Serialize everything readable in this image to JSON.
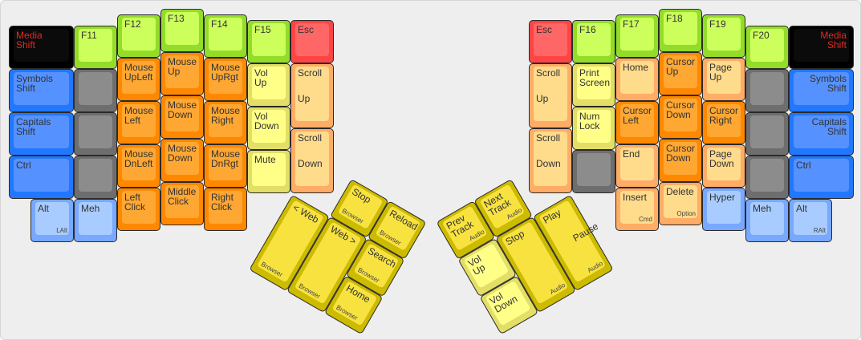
{
  "colors": {
    "black": {
      "outer": "#000000",
      "inner": "#0b0b0b",
      "text": "#e8281e"
    },
    "green": {
      "outer": "#93dc2a",
      "inner": "#ccff5c"
    },
    "blue": {
      "outer": "#2277ff",
      "inner": "#5592ff"
    },
    "gray": {
      "outer": "#6e6e6e",
      "inner": "#8c8c8c"
    },
    "orange": {
      "outer": "#ff8800",
      "inner": "#ffa733"
    },
    "lightorange": {
      "outer": "#ffac66",
      "inner": "#ffdb8c"
    },
    "paleyellow": {
      "outer": "#e3de66",
      "inner": "#ffff88"
    },
    "red": {
      "outer": "#ff4444",
      "inner": "#ff6666"
    },
    "lightblue": {
      "outer": "#78a8ff",
      "inner": "#a8ccff"
    },
    "thumb": {
      "outer": "#ccbb00",
      "inner": "#f7e240"
    }
  },
  "keys": [
    {
      "label": "Media\nShift",
      "color": "black"
    },
    {
      "label": "Symbols\nShift",
      "color": "blue"
    },
    {
      "label": "Capitals\nShift",
      "color": "blue"
    },
    {
      "label": "Ctrl",
      "color": "blue"
    },
    {
      "label": "Alt",
      "sub": "LAlt",
      "color": "lightblue"
    },
    {
      "label": "F11",
      "color": "green"
    },
    {
      "label": "",
      "color": "gray"
    },
    {
      "label": "",
      "color": "gray"
    },
    {
      "label": "",
      "color": "gray"
    },
    {
      "label": "Meh",
      "color": "lightblue"
    },
    {
      "label": "F12",
      "color": "green"
    },
    {
      "label": "Mouse\nUpLeft",
      "color": "orange"
    },
    {
      "label": "Mouse\nLeft",
      "color": "orange"
    },
    {
      "label": "Mouse\nDnLeft",
      "color": "orange"
    },
    {
      "label": "Left\nClick",
      "color": "orange"
    },
    {
      "label": "F13",
      "color": "green"
    },
    {
      "label": "Mouse\nUp",
      "color": "orange"
    },
    {
      "label": "Mouse\nDown",
      "color": "orange"
    },
    {
      "label": "Mouse\nDown",
      "color": "orange"
    },
    {
      "label": "Middle\nClick",
      "color": "orange"
    },
    {
      "label": "F14",
      "color": "green"
    },
    {
      "label": "Mouse\nUpRgt",
      "color": "orange"
    },
    {
      "label": "Mouse\nRight",
      "color": "orange"
    },
    {
      "label": "Mouse\nDnRgt",
      "color": "orange"
    },
    {
      "label": "Right\nClick",
      "color": "orange"
    },
    {
      "label": "F15",
      "color": "green"
    },
    {
      "label": "Vol\nUp",
      "color": "paleyellow"
    },
    {
      "label": "Vol\nDown",
      "color": "paleyellow"
    },
    {
      "label": "Mute",
      "color": "paleyellow"
    },
    {
      "label": "Esc",
      "color": "red"
    },
    {
      "label": "Scroll",
      "mid": "Up",
      "color": "lightorange"
    },
    {
      "label": "Scroll",
      "mid": "Down",
      "color": "lightorange"
    },
    {
      "label": "Esc",
      "color": "red"
    },
    {
      "label": "Scroll",
      "mid": "Up",
      "color": "lightorange"
    },
    {
      "label": "Scroll",
      "mid": "Down",
      "color": "lightorange"
    },
    {
      "label": "F16",
      "color": "green"
    },
    {
      "label": "Print\nScreen",
      "color": "paleyellow"
    },
    {
      "label": "Num\nLock",
      "color": "paleyellow"
    },
    {
      "label": "",
      "color": "gray"
    },
    {
      "label": "F17",
      "color": "green"
    },
    {
      "label": "Home",
      "color": "lightorange"
    },
    {
      "label": "Cursor\nLeft",
      "color": "orange"
    },
    {
      "label": "End",
      "color": "lightorange"
    },
    {
      "label": "Insert",
      "sub": "Cmd",
      "color": "lightorange"
    },
    {
      "label": "F18",
      "color": "green"
    },
    {
      "label": "Cursor\nUp",
      "color": "orange"
    },
    {
      "label": "Cursor\nDown",
      "color": "orange"
    },
    {
      "label": "Cursor\nDown",
      "color": "orange"
    },
    {
      "label": "Delete",
      "sub": "Option",
      "color": "lightorange"
    },
    {
      "label": "F19",
      "color": "green"
    },
    {
      "label": "Page\nUp",
      "color": "lightorange"
    },
    {
      "label": "Cursor\nRight",
      "color": "orange"
    },
    {
      "label": "Page\nDown",
      "color": "lightorange"
    },
    {
      "label": "Hyper",
      "color": "lightblue"
    },
    {
      "label": "F20",
      "color": "green"
    },
    {
      "label": "",
      "color": "gray"
    },
    {
      "label": "",
      "color": "gray"
    },
    {
      "label": "",
      "color": "gray"
    },
    {
      "label": "Meh",
      "color": "lightblue"
    },
    {
      "label": "Media\nShift",
      "color": "black",
      "align": "right"
    },
    {
      "label": "Symbols\nShift",
      "color": "blue",
      "align": "right"
    },
    {
      "label": "Capitals\nShift",
      "color": "blue",
      "align": "right"
    },
    {
      "label": "Ctrl",
      "color": "blue"
    },
    {
      "label": "Alt",
      "sub": "RAlt",
      "color": "lightblue"
    }
  ],
  "thumbs_left": [
    {
      "label": "Stop",
      "sub": "Browser",
      "color": "thumb"
    },
    {
      "label": "Reload",
      "sub": "Browser",
      "color": "thumb"
    },
    {
      "label": "< Web",
      "sub": "Browser",
      "color": "thumb"
    },
    {
      "label": "Web >",
      "sub": "Browser",
      "color": "thumb"
    },
    {
      "label": "Search",
      "sub": "Browser",
      "color": "thumb"
    },
    {
      "label": "Home",
      "sub": "Browser",
      "color": "thumb"
    }
  ],
  "thumbs_right": [
    {
      "label": "Next\nTrack",
      "sub": "Audio",
      "color": "thumb"
    },
    {
      "label": "Prev\nTrack",
      "sub": "Audio",
      "color": "thumb"
    },
    {
      "label": "Stop",
      "sub": "Audio",
      "color": "thumb"
    },
    {
      "label": "Play",
      "mid": "Pause",
      "sub": "Audio",
      "color": "thumb"
    },
    {
      "label": "Vol\nUp",
      "color": "paleyellow"
    },
    {
      "label": "Vol\nDown",
      "color": "paleyellow"
    }
  ]
}
